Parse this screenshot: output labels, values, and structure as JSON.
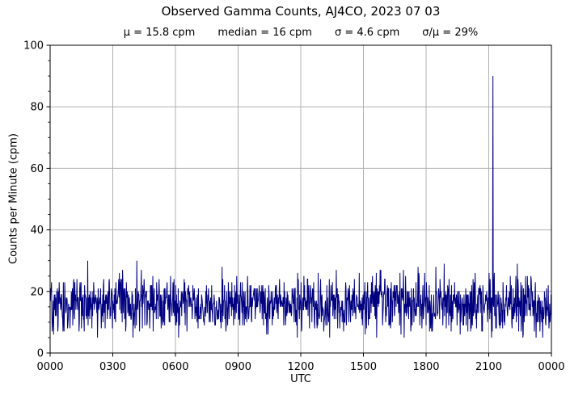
{
  "chart_data": {
    "type": "line",
    "title": "Observed Gamma Counts, AJ4CO, 2023 07 03",
    "stats_labels": {
      "mu": "μ = 15.8 cpm",
      "median": "median = 16 cpm",
      "sigma": "σ = 4.6 cpm",
      "sigma_over_mu": "σ/μ = 29%"
    },
    "xlabel": "UTC",
    "ylabel": "Counts per Minute (cpm)",
    "x_tick_labels": [
      "0000",
      "0300",
      "0600",
      "0900",
      "1200",
      "1500",
      "1800",
      "2100",
      "0000"
    ],
    "x_minutes_range": [
      0,
      1440
    ],
    "x_major_step_hours": 3,
    "ylim": [
      0,
      100
    ],
    "y_major_ticks": [
      0,
      20,
      40,
      60,
      80,
      100
    ],
    "y_minor_step": 5,
    "grid": true,
    "legend": "none",
    "colors": {
      "line": "#000080",
      "grid": "#b0b0b0",
      "axis": "#000000",
      "background": "#ffffff",
      "text": "#000000"
    },
    "series": [
      {
        "name": "observed gamma counts, 1-minute samples",
        "sample_interval_minutes": 1,
        "n_samples": 1441,
        "stats": {
          "mean_cpm": 15.8,
          "median_cpm": 16,
          "sigma_cpm": 4.6,
          "sigma_over_mu_pct": 29
        },
        "baseline_range_cpm": [
          5,
          30
        ],
        "spike": {
          "utc": "2110",
          "minute_of_day": 1272,
          "peak_cpm": 90
        },
        "generator": {
          "kind": "seeded_gaussian",
          "seed": 20230703,
          "round_to_integer": true,
          "clip_cpm": [
            5,
            30
          ]
        }
      }
    ]
  }
}
